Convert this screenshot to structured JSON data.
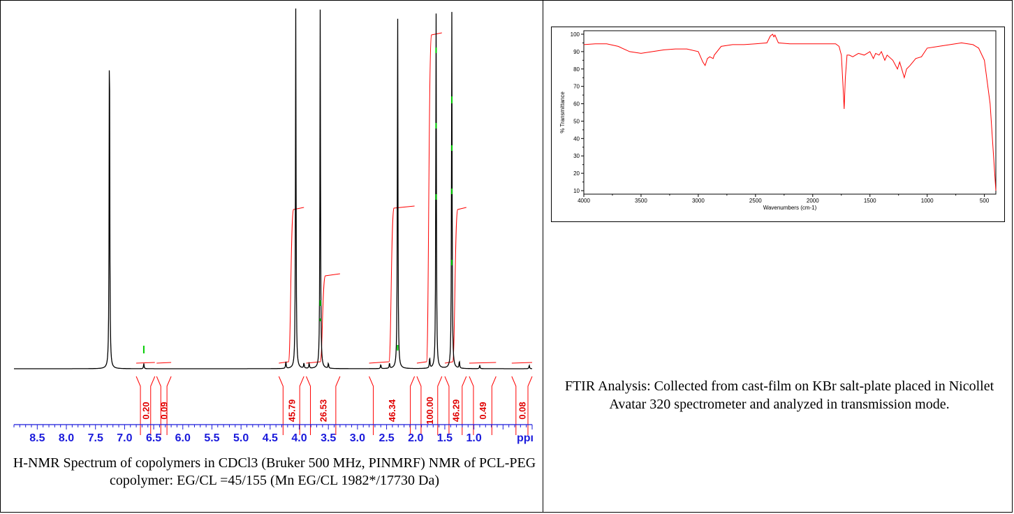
{
  "chart_data": [
    {
      "type": "line",
      "xlim": [
        8.9,
        0
      ],
      "x_ticks": [
        8.5,
        8.0,
        7.5,
        7.0,
        6.5,
        6.0,
        5.5,
        5.0,
        4.5,
        4.0,
        3.5,
        3.0,
        2.5,
        2.0,
        1.5,
        1.0
      ],
      "x_tick_labels": [
        "8.5",
        "8.0",
        "7.5",
        "7.0",
        "6.5",
        "6.0",
        "5.5",
        "5.0",
        "4.5",
        "4.0",
        "3.5",
        "3.0",
        "2.5",
        "2.0",
        "1.5",
        "1.0"
      ],
      "x_unit": "ppı",
      "peaks": [
        {
          "ppm": 7.26,
          "height": 1.0
        },
        {
          "ppm": 6.67,
          "height": 0.015
        },
        {
          "ppm": 4.23,
          "height": 0.02
        },
        {
          "ppm": 4.06,
          "height": 1.0
        },
        {
          "ppm": 3.92,
          "height": 0.015
        },
        {
          "ppm": 3.83,
          "height": 0.015
        },
        {
          "ppm": 3.64,
          "height": 1.0
        },
        {
          "ppm": 3.5,
          "height": 0.015
        },
        {
          "ppm": 2.6,
          "height": 0.012
        },
        {
          "ppm": 2.45,
          "height": 0.015
        },
        {
          "ppm": 2.31,
          "height": 1.0
        },
        {
          "ppm": 1.76,
          "height": 0.03
        },
        {
          "ppm": 1.65,
          "height": 1.0
        },
        {
          "ppm": 1.38,
          "height": 1.0
        },
        {
          "ppm": 1.25,
          "height": 0.02
        },
        {
          "ppm": 0.9,
          "height": 0.01
        },
        {
          "ppm": 0.05,
          "height": 0.01
        }
      ],
      "integrals": [
        {
          "label": "0.20",
          "from": 6.8,
          "to": 6.48
        },
        {
          "label": "0.09",
          "from": 6.45,
          "to": 6.2
        },
        {
          "label": "45.79",
          "from": 4.35,
          "to": 3.92
        },
        {
          "label": "26.53",
          "from": 3.88,
          "to": 3.3
        },
        {
          "label": "46.34",
          "from": 2.8,
          "to": 2.02
        },
        {
          "label": "100.00",
          "from": 1.98,
          "to": 1.55
        },
        {
          "label": "46.29",
          "from": 1.5,
          "to": 1.13
        },
        {
          "label": "0.49",
          "from": 1.08,
          "to": 0.62
        },
        {
          "label": "0.08",
          "from": 0.35,
          "to": 0.0
        }
      ],
      "caption": "H-NMR Spectrum of copolymers in CDCl3 (Bruker 500 MHz, PINMRF) NMR of PCL-PEG copolymer: EG/CL =45/155 (Mn EG/CL 1982*/17730 Da)"
    },
    {
      "type": "line",
      "xlabel": "Wavenumbers (cm-1)",
      "ylabel": "% Transmittance",
      "xlim": [
        4000,
        400
      ],
      "ylim": [
        8,
        102
      ],
      "x_ticks": [
        4000,
        3500,
        3000,
        2500,
        2000,
        1500,
        1000,
        500
      ],
      "y_ticks": [
        10,
        20,
        30,
        40,
        50,
        60,
        70,
        80,
        90,
        100
      ],
      "x": [
        4000,
        3900,
        3800,
        3700,
        3600,
        3500,
        3400,
        3300,
        3200,
        3100,
        3000,
        2960,
        2940,
        2920,
        2900,
        2870,
        2860,
        2800,
        2700,
        2600,
        2500,
        2400,
        2370,
        2350,
        2340,
        2330,
        2300,
        2200,
        2000,
        1800,
        1770,
        1750,
        1735,
        1725,
        1715,
        1700,
        1680,
        1650,
        1600,
        1550,
        1500,
        1470,
        1450,
        1420,
        1400,
        1370,
        1350,
        1300,
        1260,
        1240,
        1200,
        1180,
        1150,
        1100,
        1050,
        1000,
        900,
        800,
        700,
        600,
        550,
        500,
        450,
        420,
        400
      ],
      "y": [
        94,
        94.5,
        94.5,
        93,
        90,
        89,
        90,
        91,
        91.5,
        91.5,
        90,
        84,
        82,
        86,
        87,
        86,
        88,
        93,
        94,
        94,
        94.5,
        95,
        99,
        100,
        98.5,
        99.5,
        95,
        94.5,
        94.5,
        94.5,
        93,
        88,
        70,
        57,
        75,
        88,
        88,
        87,
        89,
        88,
        90,
        86,
        89,
        88,
        90,
        85,
        88,
        85,
        80,
        84,
        75,
        80,
        82,
        86,
        87,
        92,
        93,
        94,
        95,
        94,
        92,
        85,
        60,
        30,
        10
      ],
      "caption": "FTIR Analysis: Collected from cast-film on KBr salt-plate placed in Nicollet Avatar 320 spectrometer and analyzed in transmission mode."
    }
  ],
  "colors": {
    "nmr_trace": "#000000",
    "nmr_integral": "#ff0000",
    "nmr_axis": "#1a1adb",
    "nmr_marker": "#00cc00",
    "ftir_trace": "#ff0000",
    "ftir_frame": "#000000"
  }
}
